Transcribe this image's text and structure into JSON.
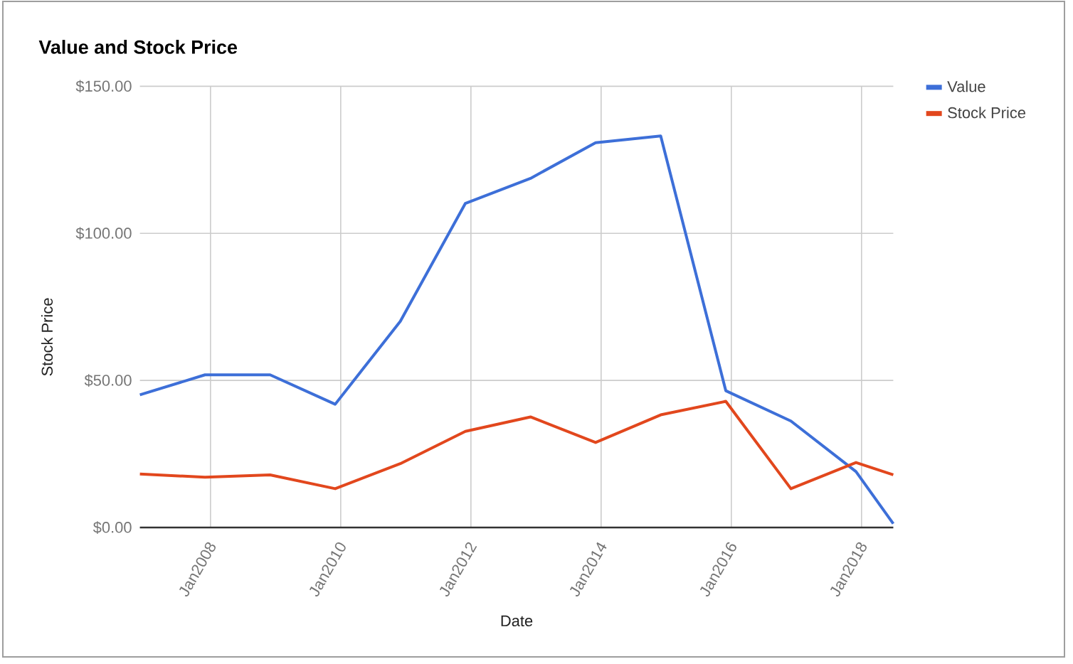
{
  "chart_data": {
    "type": "line",
    "title": "Value and Stock Price",
    "xlabel": "Date",
    "ylabel": "Stock Price",
    "x": [
      "2006-12-01",
      "2007-12-01",
      "2008-12-01",
      "2009-12-01",
      "2010-12-01",
      "2011-12-01",
      "2012-12-01",
      "2013-12-01",
      "2014-12-01",
      "2015-12-01",
      "2016-12-01",
      "2017-12-01",
      "2018-06-28"
    ],
    "series": [
      {
        "name": "Value",
        "color": "#3d6fd8",
        "values": [
          45.1,
          51.9,
          51.9,
          41.9,
          70.1,
          110.2,
          118.7,
          130.8,
          133.1,
          46.5,
          36.2,
          19.0,
          1.3
        ]
      },
      {
        "name": "Stock Price",
        "color": "#e2471d",
        "values": [
          18.2,
          17.1,
          17.9,
          13.2,
          21.7,
          32.7,
          37.6,
          28.9,
          38.3,
          42.9,
          13.2,
          22.1,
          17.9
        ]
      }
    ],
    "xlim": [
      "2006-12-01",
      "2018-06-28"
    ],
    "ylim": [
      0,
      150
    ],
    "xticks": [
      {
        "value": "2008-01-01",
        "label": "Jan2008"
      },
      {
        "value": "2010-01-01",
        "label": "Jan2010"
      },
      {
        "value": "2012-01-01",
        "label": "Jan2012"
      },
      {
        "value": "2014-01-01",
        "label": "Jan2014"
      },
      {
        "value": "2016-01-01",
        "label": "Jan2016"
      },
      {
        "value": "2018-01-01",
        "label": "Jan2018"
      }
    ],
    "yticks": [
      {
        "value": 0,
        "label": "$0.00"
      },
      {
        "value": 50,
        "label": "$50.00"
      },
      {
        "value": 100,
        "label": "$100.00"
      },
      {
        "value": 150,
        "label": "$150.00"
      }
    ],
    "grid": true,
    "legend": "top right"
  }
}
